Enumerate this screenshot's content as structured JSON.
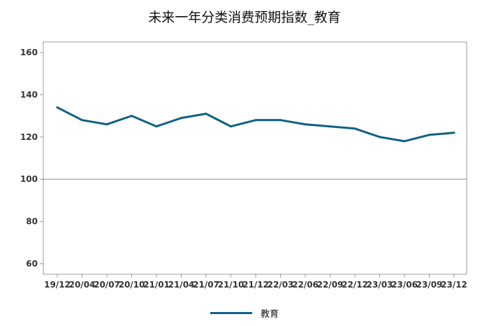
{
  "chart_data": {
    "type": "line",
    "title": "未来一年分类消费预期指数_教育",
    "categories": [
      "19/12",
      "20/04",
      "20/07",
      "20/10",
      "21/01",
      "21/04",
      "21/07",
      "21/10",
      "21/12",
      "22/03",
      "22/06",
      "22/09",
      "22/12",
      "23/03",
      "23/06",
      "23/09",
      "23/12"
    ],
    "series": [
      {
        "name": "教育",
        "color": "#0f6184",
        "values": [
          134,
          128,
          126,
          130,
          125,
          129,
          131,
          125,
          128,
          128,
          126,
          125,
          124,
          120,
          118,
          121,
          122
        ]
      }
    ],
    "ylim": [
      55,
      165
    ],
    "yticks": [
      60,
      80,
      100,
      120,
      140,
      160
    ],
    "reference_line": 100,
    "xlabel": "",
    "ylabel": "",
    "grid": false,
    "legend": "bottom-center"
  }
}
